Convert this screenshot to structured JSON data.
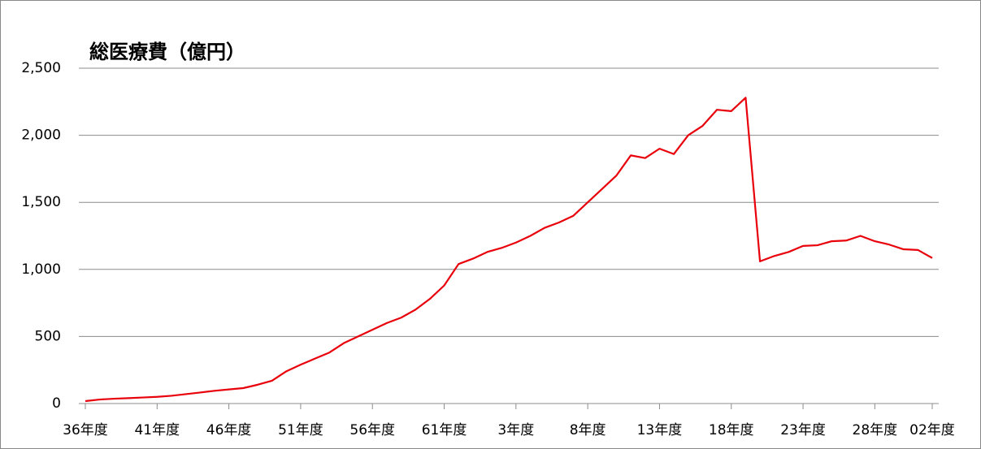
{
  "chart_data": {
    "type": "line",
    "title": "総医療費（億円）",
    "categories": [
      "36年度",
      null,
      null,
      null,
      null,
      "41年度",
      null,
      null,
      null,
      null,
      "46年度",
      null,
      null,
      null,
      null,
      "51年度",
      null,
      null,
      null,
      null,
      "56年度",
      null,
      null,
      null,
      null,
      "61年度",
      null,
      null,
      null,
      null,
      "3年度",
      null,
      null,
      null,
      null,
      "8年度",
      null,
      null,
      null,
      null,
      "13年度",
      null,
      null,
      null,
      null,
      "18年度",
      null,
      null,
      null,
      null,
      "23年度",
      null,
      null,
      null,
      null,
      "28年度",
      null,
      null,
      null,
      "02年度"
    ],
    "values": [
      18,
      30,
      36,
      40,
      45,
      50,
      58,
      70,
      82,
      95,
      105,
      115,
      140,
      170,
      240,
      290,
      335,
      380,
      450,
      500,
      550,
      600,
      640,
      700,
      780,
      880,
      1040,
      1080,
      1130,
      1160,
      1200,
      1250,
      1310,
      1350,
      1400,
      1500,
      1600,
      1700,
      1850,
      1830,
      1900,
      1860,
      2000,
      2070,
      2190,
      2180,
      2280,
      1060,
      1100,
      1130,
      1175,
      1180,
      1210,
      1215,
      1250,
      1210,
      1185,
      1150,
      1145,
      1085
    ],
    "color": "#e8000b",
    "ylim": [
      0,
      2500
    ],
    "yticks": [
      0,
      500,
      {
        "value": 1000,
        "label": "1,000"
      },
      {
        "value": 1500,
        "label": "1,500"
      },
      {
        "value": 2000,
        "label": "2,000"
      },
      {
        "value": 2500,
        "label": "2,500"
      }
    ],
    "grid": true
  }
}
